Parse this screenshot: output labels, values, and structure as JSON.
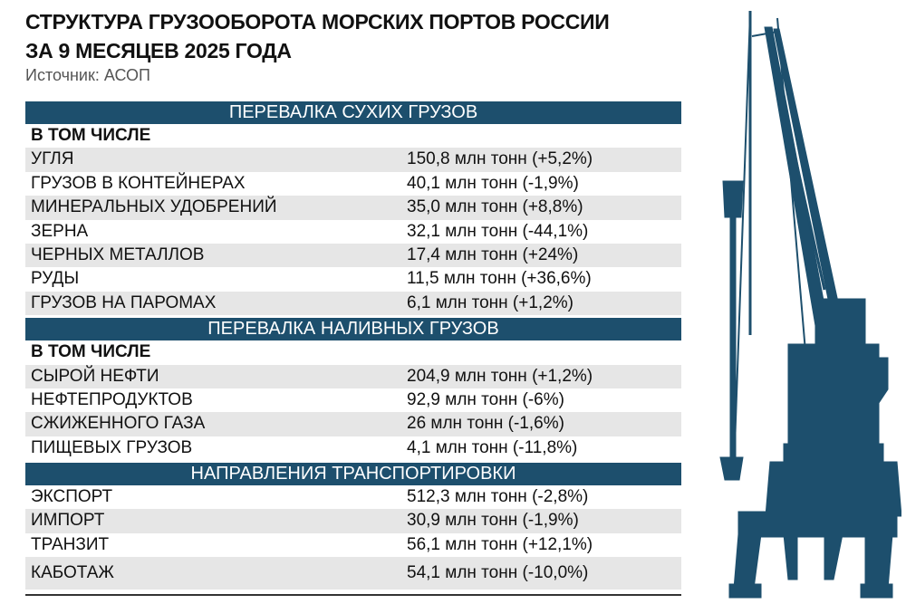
{
  "header": {
    "title_lines": [
      "СТРУКТУРА ГРУЗООБОРОТА МОРСКИХ ПОРТОВ РОССИИ",
      "ЗА 9 МЕСЯЦЕВ 2025 ГОДА"
    ],
    "source": "Источник: АСОП"
  },
  "sections": [
    {
      "title": "ПЕРЕВАЛКА СУХИХ ГРУЗОВ",
      "subtitle": "В ТОМ ЧИСЛЕ",
      "rows": [
        [
          "УГЛЯ",
          "150,8 млн тонн (+5,2%)"
        ],
        [
          "ГРУЗОВ В КОНТЕЙНЕРАХ",
          "40,1 млн тонн (-1,9%)"
        ],
        [
          "МИНЕРАЛЬНЫХ УДОБРЕНИЙ",
          "35,0 млн тонн (+8,8%)"
        ],
        [
          "ЗЕРНА",
          "32,1 млн тонн (-44,1%)"
        ],
        [
          "ЧЕРНЫХ МЕТАЛЛОВ",
          "17,4 млн тонн (+24%)"
        ],
        [
          "РУДЫ",
          "11,5 млн тонн (+36,6%)"
        ],
        [
          "ГРУЗОВ НА ПАРОМАХ",
          "6,1 млн тонн (+1,2%)"
        ]
      ]
    },
    {
      "title": "ПЕРЕВАЛКА НАЛИВНЫХ ГРУЗОВ",
      "subtitle": "В ТОМ ЧИСЛЕ",
      "rows": [
        [
          "СЫРОЙ НЕФТИ",
          "204,9 млн тонн (+1,2%)"
        ],
        [
          "НЕФТЕПРОДУКТОВ",
          "92,9 млн тонн (-6%)"
        ],
        [
          "СЖИЖЕННОГО ГАЗА",
          "26 млн тонн (-1,6%)"
        ],
        [
          "ПИЩЕВЫХ ГРУЗОВ",
          "4,1 млн тонн (-11,8%)"
        ]
      ]
    },
    {
      "title": "НАПРАВЛЕНИЯ ТРАНСПОРТИРОВКИ",
      "rows": [
        [
          "ЭКСПОРТ",
          "512,3 млн тонн (-2,8%)"
        ],
        [
          "ИМПОРТ",
          "30,9 млн тонн (-1,9%)"
        ],
        [
          "ТРАНЗИТ",
          "56,1 млн тонн (+12,1%)"
        ],
        [
          "КАБОТАЖ",
          "54,1 млн тонн (-10,0%)"
        ]
      ]
    }
  ]
}
